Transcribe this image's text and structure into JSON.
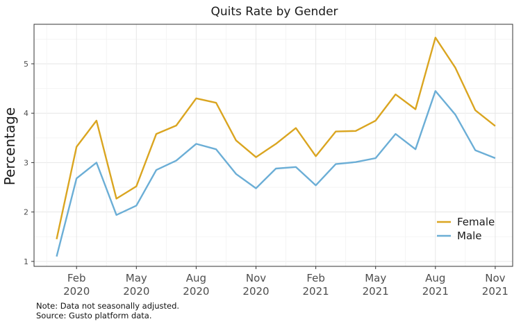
{
  "chart_data": {
    "type": "line",
    "title": "Quits Rate by Gender",
    "xlabel": "",
    "ylabel": "Percentage",
    "x": [
      "2020-01",
      "2020-02",
      "2020-03",
      "2020-04",
      "2020-05",
      "2020-06",
      "2020-07",
      "2020-08",
      "2020-09",
      "2020-10",
      "2020-11",
      "2020-12",
      "2021-01",
      "2021-02",
      "2021-03",
      "2021-04",
      "2021-05",
      "2021-06",
      "2021-07",
      "2021-08",
      "2021-09",
      "2021-10",
      "2021-11"
    ],
    "x_ticks": [
      {
        "month": "2020-02",
        "label_top": "Feb",
        "label_bottom": "2020"
      },
      {
        "month": "2020-05",
        "label_top": "May",
        "label_bottom": "2020"
      },
      {
        "month": "2020-08",
        "label_top": "Aug",
        "label_bottom": "2020"
      },
      {
        "month": "2020-11",
        "label_top": "Nov",
        "label_bottom": "2020"
      },
      {
        "month": "2021-02",
        "label_top": "Feb",
        "label_bottom": "2021"
      },
      {
        "month": "2021-05",
        "label_top": "May",
        "label_bottom": "2021"
      },
      {
        "month": "2021-08",
        "label_top": "Aug",
        "label_bottom": "2021"
      },
      {
        "month": "2021-11",
        "label_top": "Nov",
        "label_bottom": "2021"
      }
    ],
    "y_ticks": [
      "1",
      "2",
      "3",
      "4",
      "5"
    ],
    "ylim": [
      0.9,
      5.8
    ],
    "series": [
      {
        "name": "Female",
        "color": "#DAA520",
        "values": [
          1.45,
          3.32,
          3.85,
          2.27,
          2.52,
          3.58,
          3.75,
          4.3,
          4.21,
          3.45,
          3.11,
          3.38,
          3.7,
          3.13,
          3.63,
          3.64,
          3.85,
          4.38,
          4.08,
          5.53,
          4.92,
          4.06,
          3.74
        ]
      },
      {
        "name": "Male",
        "color": "#6BAED6",
        "values": [
          1.1,
          2.68,
          3.0,
          1.94,
          2.13,
          2.85,
          3.04,
          3.38,
          3.27,
          2.77,
          2.48,
          2.88,
          2.91,
          2.54,
          2.97,
          3.01,
          3.09,
          3.58,
          3.27,
          4.45,
          3.97,
          3.25,
          3.09
        ]
      }
    ],
    "grid": true,
    "legend_position": "bottom-right"
  },
  "notes": {
    "line1": "Note: Data not seasonally adjusted.",
    "line2": "Source: Gusto platform data."
  }
}
